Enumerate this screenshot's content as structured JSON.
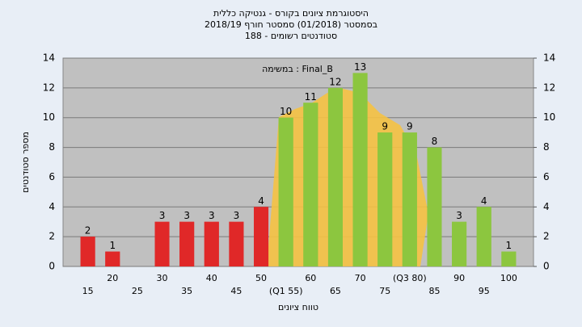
{
  "chart_data": {
    "type": "bar",
    "title": [
      "היסטוגרמת ציונים בקורס - גנטיקה כללית",
      "בסמסטר  (01/2018)  סמסטר חורף 2018/19",
      "סטודנטים רשומים - 188"
    ],
    "annotation": "Final_B : במשימה",
    "x_label": "טווח ציונים",
    "y_label": "מספר סטודנטים",
    "categories": [
      "15",
      "20",
      "25",
      "30",
      "35",
      "40",
      "45",
      "50",
      "(Q1 55)",
      "60",
      "65",
      "70",
      "75",
      "(Q3 80)",
      "85",
      "90",
      "95",
      "100"
    ],
    "values": [
      2,
      1,
      null,
      3,
      3,
      3,
      3,
      4,
      10,
      11,
      12,
      13,
      9,
      9,
      8,
      3,
      4,
      1
    ],
    "colors": [
      "#e02828",
      "#e02828",
      "#e02828",
      "#e02828",
      "#e02828",
      "#e02828",
      "#e02828",
      "#e02828",
      "#8cc63f",
      "#8cc63f",
      "#8cc63f",
      "#8cc63f",
      "#8cc63f",
      "#8cc63f",
      "#8cc63f",
      "#8cc63f",
      "#8cc63f",
      "#8cc63f"
    ],
    "ylim": [
      0,
      14
    ],
    "yticks": [
      0,
      2,
      4,
      6,
      8,
      10,
      12,
      14
    ],
    "y2lim": [
      0,
      14
    ],
    "y2ticks": [
      0,
      2,
      4,
      6,
      8,
      10,
      12,
      14
    ],
    "grid": true
  }
}
